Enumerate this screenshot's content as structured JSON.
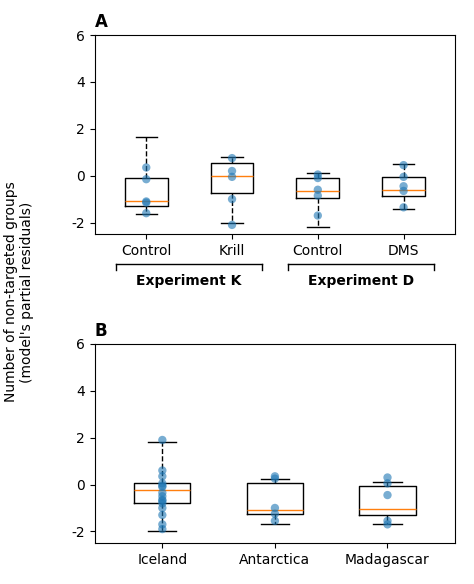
{
  "ylabel": "Number of non-targeted groups\n(model's partial residuals)",
  "chart_data": [
    {
      "type": "box",
      "title": "A",
      "categories": [
        "Control",
        "Krill",
        "Control",
        "DMS"
      ],
      "boxes": [
        {
          "q1": -1.3,
          "median": -1.1,
          "q3": -0.1,
          "whisker_low": -1.65,
          "whisker_high": 1.65,
          "points": [
            0.35,
            -0.15,
            -1.1,
            -1.15,
            -1.6
          ]
        },
        {
          "q1": -0.75,
          "median": 0.0,
          "q3": 0.55,
          "whisker_low": -2.0,
          "whisker_high": 0.8,
          "points": [
            0.75,
            0.2,
            -0.05,
            -1.0,
            -2.1
          ]
        },
        {
          "q1": -0.95,
          "median": -0.65,
          "q3": -0.1,
          "whisker_low": -2.2,
          "whisker_high": 0.1,
          "points": [
            0.05,
            -0.1,
            -0.6,
            -0.85,
            -1.7
          ]
        },
        {
          "q1": -0.85,
          "median": -0.6,
          "q3": -0.05,
          "whisker_low": -1.4,
          "whisker_high": 0.5,
          "points": [
            0.45,
            -0.05,
            -0.45,
            -0.65,
            -1.35
          ]
        }
      ],
      "groups": [
        {
          "text": "Experiment K",
          "size": 2
        },
        {
          "text": "Experiment D",
          "size": 2
        }
      ],
      "ylim": [
        -2.5,
        6.0
      ],
      "yticks": [
        -2,
        0,
        2,
        4,
        6
      ]
    },
    {
      "type": "box",
      "title": "B",
      "categories": [
        "Iceland",
        "Antarctica",
        "Madagascar"
      ],
      "boxes": [
        {
          "q1": -0.8,
          "median": -0.25,
          "q3": 0.05,
          "whisker_low": -2.0,
          "whisker_high": 1.8,
          "points": [
            1.9,
            0.6,
            0.35,
            0.05,
            -0.05,
            -0.1,
            -0.35,
            -0.5,
            -0.65,
            -0.7,
            -0.8,
            -1.0,
            -1.3,
            -1.7,
            -1.9
          ]
        },
        {
          "q1": -1.25,
          "median": -1.1,
          "q3": 0.05,
          "whisker_low": -1.7,
          "whisker_high": 0.25,
          "points": [
            0.35,
            0.25,
            -1.0,
            -1.25,
            -1.55
          ]
        },
        {
          "q1": -1.3,
          "median": -1.05,
          "q3": -0.05,
          "whisker_low": -1.7,
          "whisker_high": 0.1,
          "points": [
            0.05,
            0.3,
            -0.45,
            -1.7,
            -1.55
          ]
        }
      ],
      "ylim": [
        -2.5,
        6.0
      ],
      "yticks": [
        -2,
        0,
        2,
        4,
        6
      ]
    }
  ]
}
